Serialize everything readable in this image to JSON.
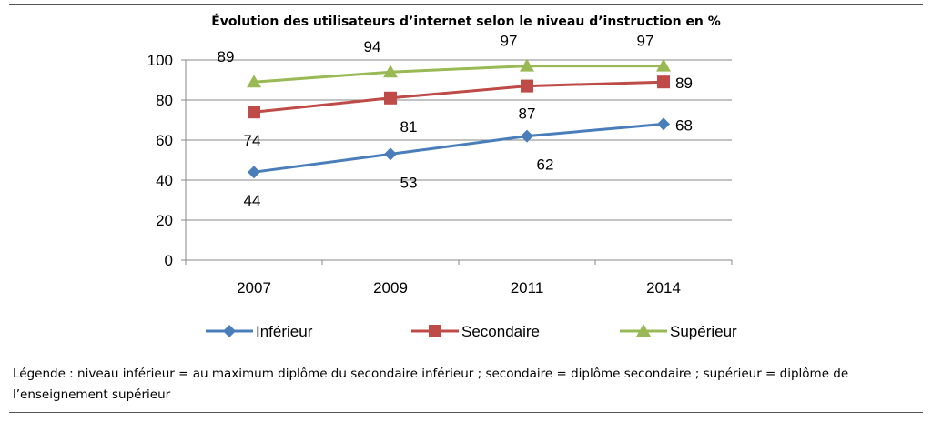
{
  "chart_data": {
    "type": "line",
    "title": "Évolution des utilisateurs d’internet selon le niveau d’instruction en %",
    "categories": [
      "2007",
      "2009",
      "2011",
      "2014"
    ],
    "ylim": [
      0,
      100
    ],
    "yticks": [
      0,
      20,
      40,
      60,
      80,
      100
    ],
    "grid": true,
    "legend_position": "bottom",
    "series": [
      {
        "name": "Inférieur",
        "values": [
          44,
          53,
          62,
          68
        ],
        "color": "#4a7ebb",
        "marker": "diamond"
      },
      {
        "name": "Secondaire",
        "values": [
          74,
          81,
          87,
          89
        ],
        "color": "#be4b48",
        "marker": "square"
      },
      {
        "name": "Supérieur",
        "values": [
          89,
          94,
          97,
          97
        ],
        "color": "#98b954",
        "marker": "triangle"
      }
    ]
  },
  "note": "Légende : niveau inférieur = au maximum diplôme du secondaire inférieur ; secondaire = diplôme secondaire ; supérieur = diplôme de l’enseignement supérieur"
}
